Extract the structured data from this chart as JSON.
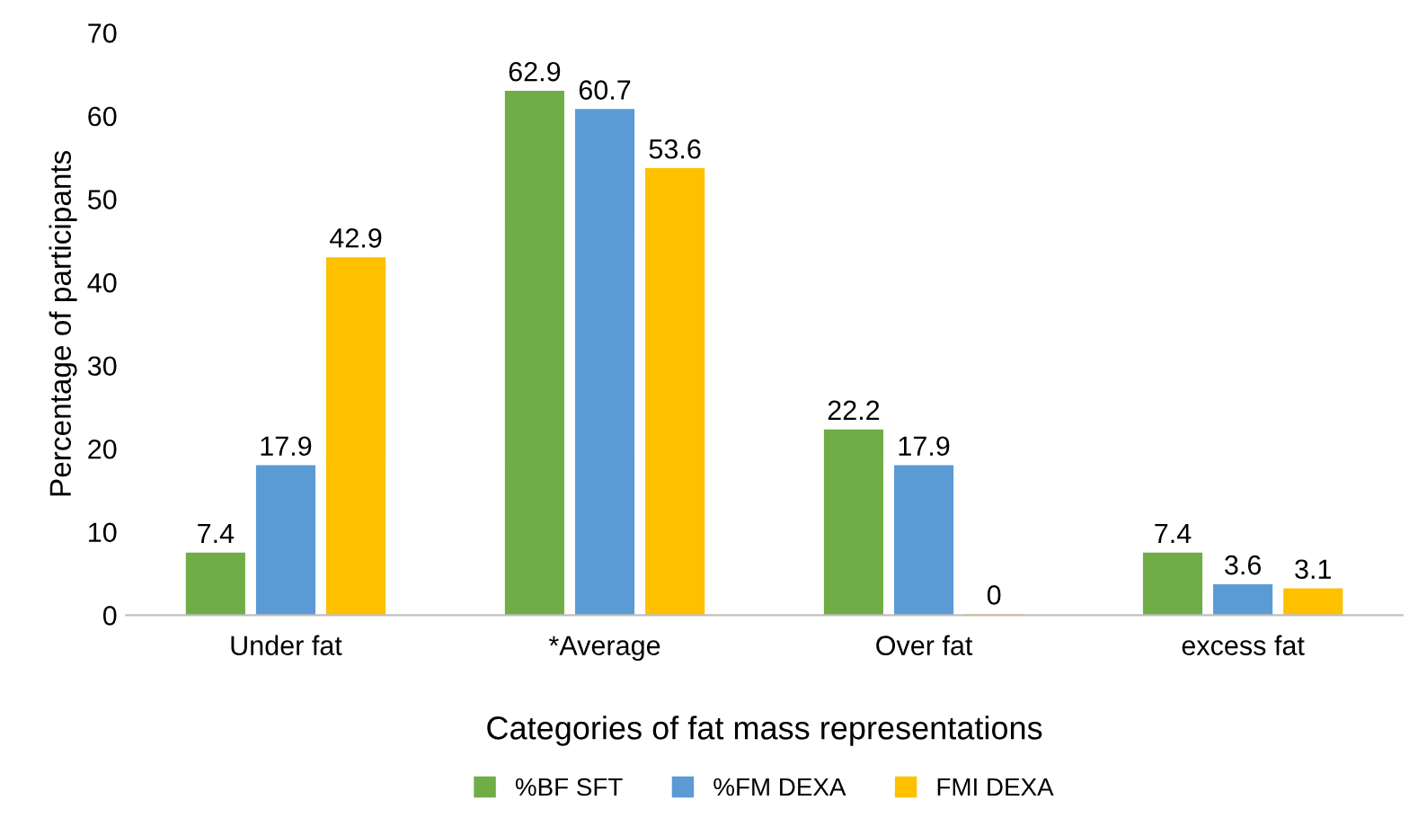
{
  "chart_data": {
    "type": "bar",
    "xlabel": "Categories of fat mass representations",
    "ylabel": "Percentage of participants",
    "categories": [
      "Under fat",
      "*Average",
      "Over fat",
      "excess fat"
    ],
    "series": [
      {
        "name": "%BF SFT",
        "color": "#70ad47",
        "values": [
          7.4,
          62.9,
          22.2,
          7.4
        ]
      },
      {
        "name": "%FM DEXA",
        "color": "#5b9bd5",
        "values": [
          17.9,
          60.7,
          17.9,
          3.6
        ]
      },
      {
        "name": "FMI DEXA",
        "color": "#ffc000",
        "values": [
          42.9,
          53.6,
          0,
          3.1
        ]
      }
    ],
    "ylim": [
      0,
      70
    ],
    "yticks": [
      0,
      10,
      20,
      30,
      40,
      50,
      60,
      70
    ],
    "grid": false,
    "legend": "bottom",
    "data_labels": true
  }
}
